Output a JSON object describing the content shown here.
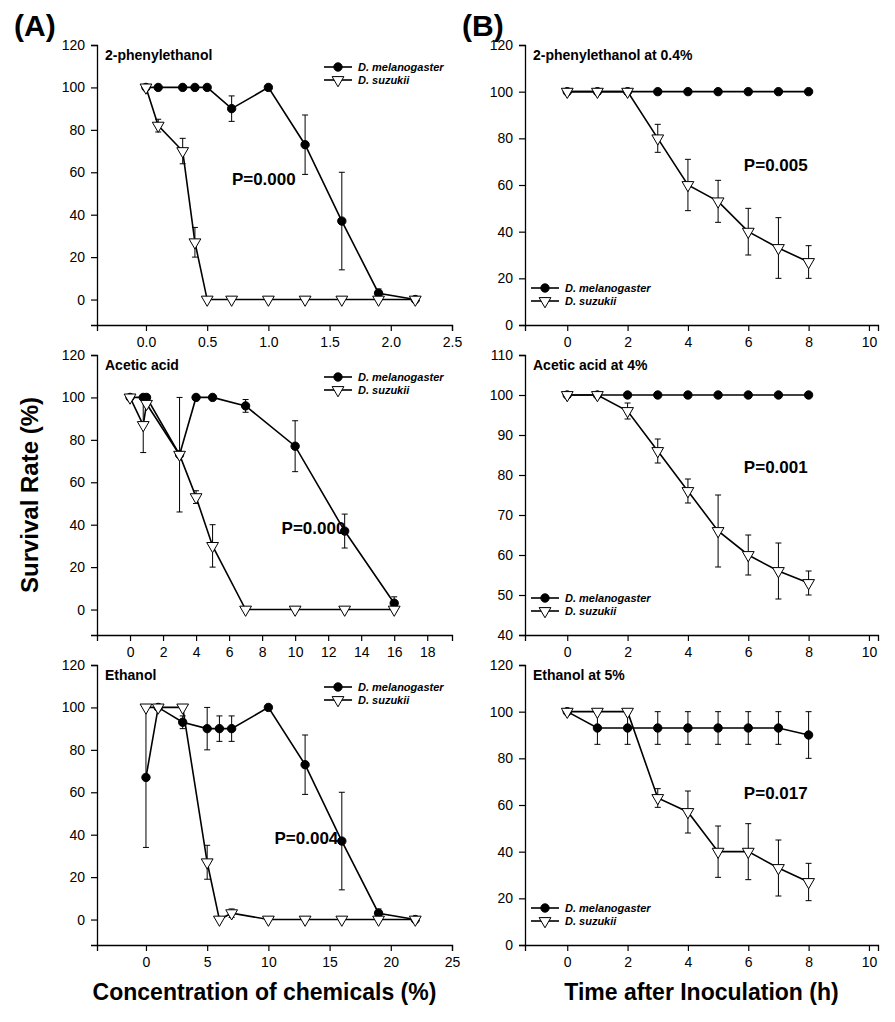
{
  "figure": {
    "panel_labels": [
      "(A)",
      "(B)"
    ],
    "ylabel": "Survival Rate (%)",
    "xlabels": [
      "Concentration of chemicals (%)",
      "Time after Inoculation (h)"
    ]
  },
  "chart_data": [
    {
      "type": "line",
      "title": "2-phenylethanol",
      "annotation": "P=0.000",
      "legend": "upper right",
      "xlim": [
        -0.4,
        2.5
      ],
      "xticks": [
        {
          "value": 0,
          "label": "0.0"
        },
        0.5,
        {
          "value": 1,
          "label": "1.0"
        },
        1.5,
        {
          "value": 2,
          "label": "2.0"
        },
        2.5
      ],
      "ylim": [
        -12,
        120
      ],
      "yticks": [
        0,
        20,
        40,
        60,
        80,
        100,
        120
      ],
      "x": [
        0,
        0.1,
        0.3,
        0.4,
        0.5,
        0.7,
        1.0,
        1.3,
        1.6,
        1.9,
        2.2
      ],
      "series": [
        {
          "name": "D. melanogaster",
          "color": "#000000",
          "marker": "circle",
          "values": [
            100,
            100,
            100,
            100,
            100,
            90,
            100,
            73,
            37,
            3,
            0
          ],
          "errors": [
            0,
            0,
            0,
            0,
            0,
            6,
            0,
            14,
            23,
            2,
            0
          ]
        },
        {
          "name": "D. suzukii",
          "color": "#ffffff",
          "marker": "triangle-down",
          "values": [
            100,
            82,
            70,
            27,
            0,
            0,
            0,
            0,
            0,
            0,
            0
          ],
          "errors": [
            0,
            3,
            6,
            7,
            0,
            0,
            0,
            0,
            0,
            0,
            0
          ]
        }
      ]
    },
    {
      "type": "line",
      "title": "Acetic acid",
      "annotation": "P=0.000",
      "legend": "upper right",
      "xlim": [
        -2,
        19.5
      ],
      "xticks": [
        0,
        2,
        4,
        6,
        8,
        10,
        12,
        14,
        16,
        18
      ],
      "ylim": [
        -12,
        120
      ],
      "yticks": [
        0,
        20,
        40,
        60,
        80,
        100,
        120
      ],
      "x": [
        0,
        0.8,
        1,
        3,
        4,
        5,
        7,
        10,
        13,
        16
      ],
      "series": [
        {
          "name": "D. melanogaster",
          "color": "#000000",
          "marker": "circle",
          "values": [
            100,
            100,
            100,
            73,
            100,
            100,
            96,
            77,
            37,
            3
          ],
          "errors": [
            0,
            0,
            0,
            0,
            0,
            0,
            3,
            12,
            8,
            3
          ]
        },
        {
          "name": "D. suzukii",
          "color": "#ffffff",
          "marker": "triangle-down",
          "values": [
            100,
            87,
            97,
            73,
            53,
            30,
            0,
            0,
            0,
            0
          ],
          "errors": [
            0,
            13,
            0,
            27,
            3,
            10,
            0,
            0,
            0,
            0
          ]
        }
      ]
    },
    {
      "type": "line",
      "title": "Ethanol",
      "annotation": "P=0.004",
      "legend": "upper right",
      "xlim": [
        -4,
        25
      ],
      "xticks": [
        0,
        5,
        10,
        15,
        20,
        25
      ],
      "ylim": [
        -12,
        120
      ],
      "yticks": [
        0,
        20,
        40,
        60,
        80,
        100,
        120
      ],
      "x": [
        0,
        1,
        3,
        5,
        6,
        7,
        10,
        13,
        16,
        19,
        22
      ],
      "series": [
        {
          "name": "D. melanogaster",
          "color": "#000000",
          "marker": "circle",
          "values": [
            67,
            100,
            93,
            90,
            90,
            90,
            100,
            73,
            37,
            3,
            0
          ],
          "errors": [
            33,
            0,
            3,
            10,
            6,
            6,
            0,
            14,
            23,
            2,
            0
          ]
        },
        {
          "name": "D. suzukii",
          "color": "#ffffff",
          "marker": "triangle-down",
          "values": [
            100,
            100,
            100,
            27,
            0,
            3,
            0,
            0,
            0,
            0,
            0
          ],
          "errors": [
            0,
            0,
            0,
            8,
            0,
            2,
            0,
            0,
            0,
            0,
            0
          ]
        }
      ]
    },
    {
      "type": "line",
      "title": "2-phenylethanol at 0.4%",
      "annotation": "P=0.005",
      "legend": "lower left",
      "xlim": [
        -1.4,
        10.3
      ],
      "xticks": [
        0,
        2,
        4,
        6,
        8,
        10
      ],
      "ylim": [
        0,
        120
      ],
      "yticks": [
        0,
        20,
        40,
        60,
        80,
        100,
        120
      ],
      "x": [
        0,
        1,
        2,
        3,
        4,
        5,
        6,
        7,
        8
      ],
      "series": [
        {
          "name": "D. melanogaster",
          "color": "#000000",
          "marker": "circle",
          "values": [
            100,
            100,
            100,
            100,
            100,
            100,
            100,
            100,
            100
          ],
          "errors": [
            0,
            0,
            0,
            0,
            0,
            0,
            0,
            0,
            0
          ]
        },
        {
          "name": "D. suzukii",
          "color": "#ffffff",
          "marker": "triangle-down",
          "values": [
            100,
            100,
            100,
            80,
            60,
            53,
            40,
            33,
            27
          ],
          "errors": [
            0,
            0,
            0,
            6,
            11,
            9,
            10,
            13,
            7
          ]
        }
      ]
    },
    {
      "type": "line",
      "title": "Acetic acid at 4%",
      "annotation": "P=0.001",
      "legend": "lower left",
      "xlim": [
        -1.4,
        10.3
      ],
      "xticks": [
        0,
        2,
        4,
        6,
        8,
        10
      ],
      "ylim": [
        40,
        110
      ],
      "yticks": [
        40,
        50,
        60,
        70,
        80,
        90,
        100,
        110
      ],
      "x": [
        0,
        1,
        2,
        3,
        4,
        5,
        6,
        7,
        8
      ],
      "series": [
        {
          "name": "D. melanogaster",
          "color": "#000000",
          "marker": "circle",
          "values": [
            100,
            100,
            100,
            100,
            100,
            100,
            100,
            100,
            100
          ],
          "errors": [
            0,
            0,
            0,
            0,
            0,
            0,
            0,
            0,
            0
          ]
        },
        {
          "name": "D. suzukii",
          "color": "#ffffff",
          "marker": "triangle-down",
          "values": [
            100,
            100,
            96,
            86,
            76,
            66,
            60,
            56,
            53
          ],
          "errors": [
            0,
            0,
            2,
            3,
            3,
            9,
            5,
            7,
            3
          ]
        }
      ]
    },
    {
      "type": "line",
      "title": "Ethanol at 5%",
      "annotation": "P=0.017",
      "legend": "lower left",
      "xlim": [
        -1.4,
        10.3
      ],
      "xticks": [
        0,
        2,
        4,
        6,
        8,
        10
      ],
      "ylim": [
        0,
        120
      ],
      "yticks": [
        0,
        20,
        40,
        60,
        80,
        100,
        120
      ],
      "x": [
        0,
        1,
        2,
        3,
        4,
        5,
        6,
        7,
        8
      ],
      "series": [
        {
          "name": "D. melanogaster",
          "color": "#000000",
          "marker": "circle",
          "values": [
            100,
            93,
            93,
            93,
            93,
            93,
            93,
            93,
            90
          ],
          "errors": [
            0,
            7,
            7,
            7,
            7,
            7,
            7,
            7,
            10
          ]
        },
        {
          "name": "D. suzukii",
          "color": "#ffffff",
          "marker": "triangle-down",
          "values": [
            100,
            100,
            100,
            63,
            57,
            40,
            40,
            33,
            27
          ],
          "errors": [
            0,
            0,
            0,
            4,
            9,
            11,
            12,
            12,
            8
          ]
        }
      ]
    }
  ]
}
